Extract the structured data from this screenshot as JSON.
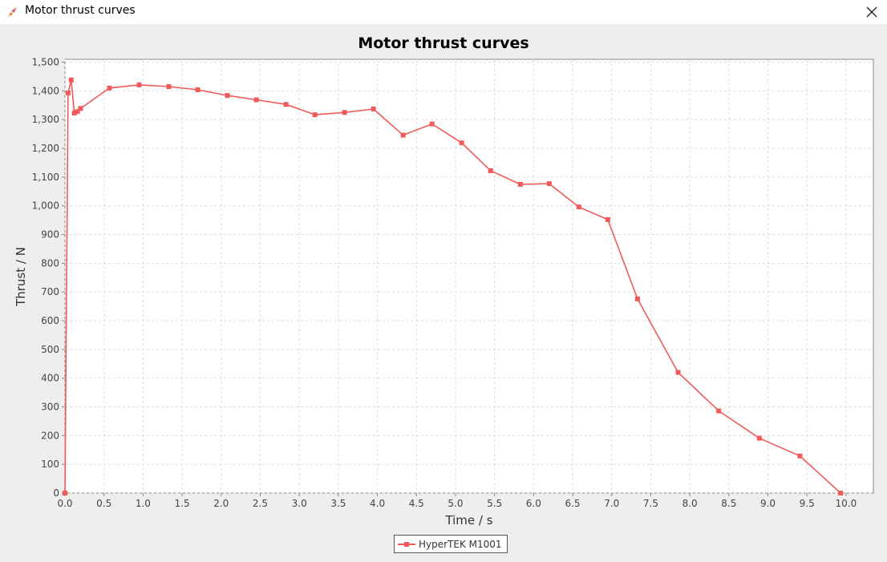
{
  "window": {
    "title": "Motor thrust curves",
    "icon": "rocket-icon",
    "close_icon": "close-icon"
  },
  "chart_data": {
    "type": "line",
    "title": "Motor thrust curves",
    "xlabel": "Time / s",
    "ylabel": "Thrust / N",
    "xlim": [
      0,
      10.35
    ],
    "ylim": [
      0,
      1510
    ],
    "xticks": [
      0,
      0.5,
      1,
      1.5,
      2,
      2.5,
      3,
      3.5,
      4,
      4.5,
      5,
      5.5,
      6,
      6.5,
      7,
      7.5,
      8,
      8.5,
      9,
      9.5,
      10
    ],
    "xtick_labels": [
      "0.0",
      "0.5",
      "1.0",
      "1.5",
      "2.0",
      "2.5",
      "3.0",
      "3.5",
      "4.0",
      "4.5",
      "5.0",
      "5.5",
      "6.0",
      "6.5",
      "7.0",
      "7.5",
      "8.0",
      "8.5",
      "9.0",
      "9.5",
      "10.0"
    ],
    "yticks": [
      0,
      100,
      200,
      300,
      400,
      500,
      600,
      700,
      800,
      900,
      1000,
      1100,
      1200,
      1300,
      1400,
      1500
    ],
    "ytick_labels": [
      "0",
      "100",
      "200",
      "300",
      "400",
      "500",
      "600",
      "700",
      "800",
      "900",
      "1,000",
      "1,100",
      "1,200",
      "1,300",
      "1,400",
      "1,500"
    ],
    "grid": true,
    "legend_position": "bottom-center",
    "series": [
      {
        "name": "HyperTEK M1001",
        "color": "#f05a5a",
        "marker": "square",
        "x": [
          0.0,
          0.04,
          0.08,
          0.12,
          0.16,
          0.2,
          0.57,
          0.95,
          1.33,
          1.7,
          2.08,
          2.45,
          2.83,
          3.2,
          3.58,
          3.95,
          4.33,
          4.7,
          5.08,
          5.45,
          5.83,
          6.2,
          6.58,
          6.95,
          7.33,
          7.85,
          8.37,
          8.89,
          9.41,
          9.93
        ],
        "y": [
          0,
          1393,
          1438,
          1323,
          1328,
          1339,
          1410,
          1421,
          1415,
          1404,
          1384,
          1369,
          1353,
          1317,
          1325,
          1337,
          1246,
          1285,
          1219,
          1122,
          1075,
          1077,
          996,
          952,
          676,
          420,
          286,
          191,
          129,
          0
        ]
      }
    ]
  }
}
